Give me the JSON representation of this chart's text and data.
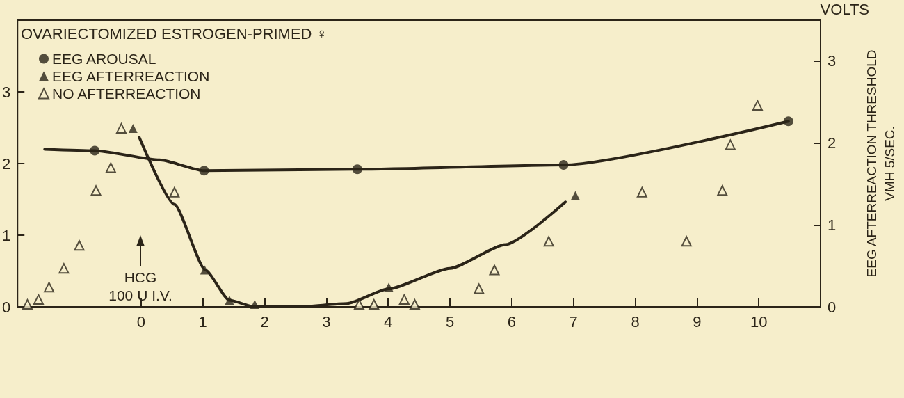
{
  "chart_data": {
    "type": "scatter",
    "legend_title": "OVARIECTOMIZED ESTROGEN-PRIMED ♀",
    "y2label": "EEG AFTERREACTION THRESHOLD\nVMH 5/SEC.",
    "xlim": [
      -2,
      11
    ],
    "xticks": [
      0,
      1,
      2,
      3,
      4,
      5,
      6,
      7,
      8,
      9,
      10
    ],
    "ylim": [
      0,
      4
    ],
    "yticks": [
      0,
      1,
      2,
      3
    ],
    "y2lim": [
      0,
      3.5
    ],
    "y2ticks": [
      0,
      1,
      2,
      3
    ],
    "grid": false,
    "legend": "top left",
    "line_style": "solid",
    "series": [
      {
        "type": "line",
        "marker": "none",
        "color": "#2b2418",
        "x": [
          -1.56,
          -0.75,
          0.3,
          1.02,
          3.5,
          6.84,
          10.48
        ],
        "values": [
          2.2,
          2.18,
          2.05,
          1.9,
          1.92,
          1.98,
          2.59
        ]
      },
      {
        "type": "line",
        "marker": "none",
        "color": "#2b2418",
        "axis": "y2",
        "x": [
          -0.03,
          0.54,
          1.04,
          1.43,
          1.84,
          2.55,
          3.33,
          4.01,
          5.0,
          5.9,
          6.87
        ],
        "values": [
          2.07,
          1.25,
          0.45,
          0.08,
          0.0,
          0.0,
          0.04,
          0.22,
          0.47,
          0.76,
          1.28
        ]
      },
      {
        "name": "EEG AROUSAL",
        "marker": "circle",
        "color": "#2b2418",
        "x": [
          -0.75,
          1.02,
          3.5,
          6.84,
          10.48
        ],
        "values": [
          2.18,
          1.9,
          1.92,
          1.98,
          2.59
        ]
      },
      {
        "name": "EEG AFTERREACTION",
        "marker": "triangle",
        "color": "#2b2418",
        "axis": "y2",
        "x": [
          -0.13,
          1.03,
          1.43,
          1.84,
          4.01,
          7.03
        ],
        "values": [
          2.18,
          0.45,
          0.08,
          0.03,
          0.24,
          1.36
        ]
      },
      {
        "name": "NO AFTERREACTION",
        "marker": "triangle-open",
        "color": "#2b2418",
        "axis": "y2",
        "x": [
          -1.84,
          -1.66,
          -1.49,
          -1.25,
          -1.0,
          -0.73,
          -0.49,
          -0.32,
          0.54,
          3.53,
          3.77,
          4.26,
          4.43,
          5.47,
          5.72,
          6.6,
          8.11,
          8.83,
          9.41,
          9.54,
          9.98
        ],
        "values": [
          0.03,
          0.09,
          0.24,
          0.47,
          0.75,
          1.42,
          1.7,
          2.18,
          1.4,
          0.03,
          0.03,
          0.09,
          0.03,
          0.22,
          0.45,
          0.8,
          1.4,
          0.8,
          1.42,
          1.98,
          2.46
        ]
      }
    ],
    "annotations": [
      "VOLTS",
      "HCG\n100 U I.V."
    ]
  }
}
